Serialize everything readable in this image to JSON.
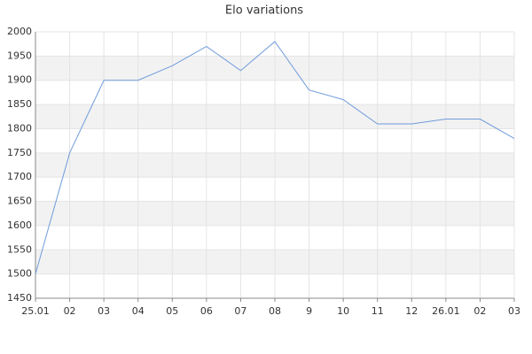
{
  "chart_data": {
    "type": "line",
    "title": "Elo variations",
    "categories": [
      "25.01",
      "02",
      "03",
      "04",
      "05",
      "06",
      "07",
      "08",
      "9",
      "10",
      "11",
      "12",
      "26.01",
      "02",
      "03"
    ],
    "values": [
      1500,
      1750,
      1900,
      1900,
      1930,
      1970,
      1920,
      1980,
      1880,
      1860,
      1810,
      1810,
      1820,
      1820,
      1780
    ],
    "color": "#6f9bdc",
    "ylim": [
      1450,
      2000
    ],
    "yticks": [
      1450,
      1500,
      1550,
      1600,
      1650,
      1700,
      1750,
      1800,
      1850,
      1900,
      1950,
      2000
    ],
    "grid": true
  }
}
